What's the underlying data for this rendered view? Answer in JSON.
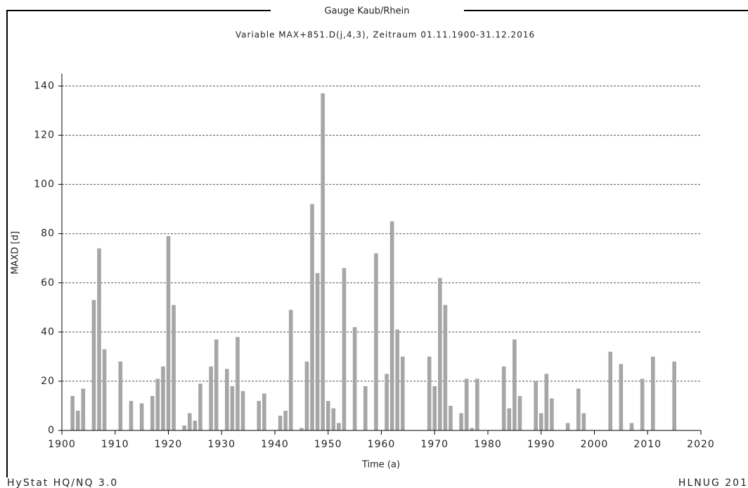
{
  "chart_data": {
    "type": "bar",
    "title": "Gauge Kaub/Rhein",
    "subtitle": "Variable MAX+851.D(j,4,3), Zeitraum  01.11.1900-31.12.2016",
    "x_label": "Time (a)",
    "y_label": "MAXD [d]",
    "footer_left": "HyStat HQ/NQ 3.0",
    "footer_right": "HLNUG 201",
    "x": [
      1902,
      1903,
      1904,
      1906,
      1907,
      1908,
      1911,
      1913,
      1915,
      1917,
      1918,
      1919,
      1920,
      1921,
      1923,
      1924,
      1925,
      1926,
      1928,
      1929,
      1931,
      1932,
      1933,
      1934,
      1937,
      1938,
      1941,
      1942,
      1943,
      1945,
      1946,
      1947,
      1948,
      1949,
      1950,
      1951,
      1952,
      1953,
      1955,
      1957,
      1959,
      1961,
      1962,
      1963,
      1964,
      1969,
      1970,
      1971,
      1972,
      1973,
      1975,
      1976,
      1977,
      1978,
      1983,
      1984,
      1985,
      1986,
      1989,
      1990,
      1991,
      1992,
      1995,
      1997,
      1998,
      2003,
      2005,
      2007,
      2009,
      2011,
      2015
    ],
    "values": [
      14,
      8,
      17,
      53,
      74,
      33,
      28,
      12,
      11,
      14,
      21,
      26,
      79,
      51,
      2,
      7,
      4,
      19,
      26,
      37,
      25,
      18,
      38,
      16,
      12,
      15,
      6,
      8,
      49,
      1,
      28,
      92,
      64,
      137,
      12,
      9,
      3,
      66,
      42,
      18,
      72,
      23,
      85,
      41,
      30,
      30,
      18,
      62,
      51,
      10,
      7,
      21,
      1,
      21,
      26,
      9,
      37,
      14,
      20,
      7,
      23,
      13,
      3,
      17,
      7,
      32,
      27,
      3,
      21,
      30,
      28
    ],
    "color": "#a6a6a6",
    "xlim": [
      1900,
      2020
    ],
    "xticks": [
      1900,
      1910,
      1920,
      1930,
      1940,
      1950,
      1960,
      1970,
      1980,
      1990,
      2000,
      2010,
      2020
    ],
    "ylim": [
      0,
      145
    ],
    "yticks": [
      0,
      20,
      40,
      60,
      80,
      100,
      120,
      140
    ],
    "grid": true
  }
}
